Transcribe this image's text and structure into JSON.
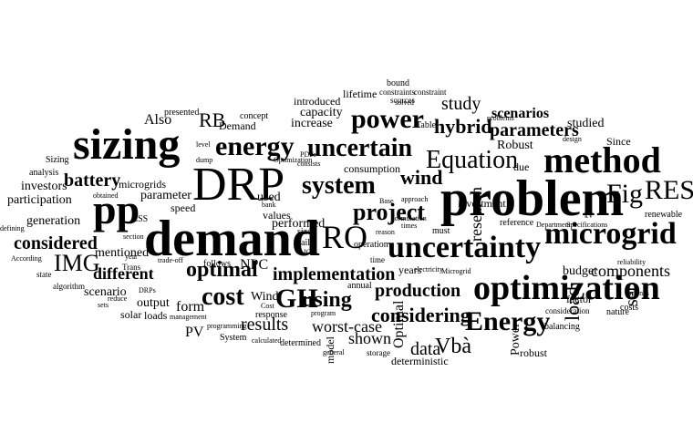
{
  "cloud": {
    "text_color": "#000000",
    "background": "#ffffff",
    "words": [
      "problem",
      "demand",
      "uncertainty",
      "optimization",
      "sizing",
      "DRP",
      "method",
      "pp",
      "microgrid",
      "RES",
      "energy",
      "uncertain",
      "Fig",
      "power",
      "system",
      "Equation",
      "Energy",
      "RO",
      "GH",
      "cost",
      "project",
      "considering",
      "hybrid",
      "wind",
      "optimal",
      "IMG",
      "using",
      "parameters",
      "scenarios",
      "implementation",
      "production",
      "considered",
      "battery",
      "different",
      "components",
      "data",
      "Vbà",
      "shown",
      "worst-case",
      "study",
      "results",
      "set",
      "load",
      "research",
      "Optimal",
      "model",
      "Power",
      "RB",
      "increase",
      "capacity",
      "consumption",
      "investment",
      "scenario",
      "studied",
      "Robust",
      "Since",
      "generation",
      "microgrids",
      "participation",
      "investors",
      "analysis",
      "Sizing",
      "Also",
      "presented",
      "Demand",
      "concept",
      "lifetime",
      "introduced",
      "bound",
      "constraints",
      "constraint",
      "sources",
      "Table",
      "problems",
      "due",
      "reference",
      "renewable",
      "budget",
      "factor",
      "costs",
      "balancing",
      "robust",
      "deterministic",
      "storage",
      "determined",
      "calculated",
      "programming",
      "System",
      "PV",
      "management",
      "output",
      "loads",
      "solar",
      "sets",
      "reduce",
      "DRPs",
      "Trans",
      "year",
      "section",
      "speed",
      "parameter",
      "form",
      "follows",
      "NPC",
      "Wind",
      "Cost",
      "response",
      "values",
      "bank",
      "used",
      "performed",
      "size",
      "daily",
      "annual",
      "operation",
      "time",
      "years",
      "electricity",
      "Microgrid",
      "must",
      "reason",
      "formulation",
      "times",
      "Base",
      "approach",
      "Department",
      "Specifications",
      "reliability",
      "nature",
      "turbines",
      "consideration",
      "design",
      "program",
      "general",
      "solved",
      "PDFs",
      "consists",
      "Optimization",
      "level",
      "dump",
      "trade-off",
      "obtained",
      "ESS",
      "mentioned",
      "According",
      "state",
      "algorithm",
      "defining",
      "kV",
      "IC"
    ]
  }
}
